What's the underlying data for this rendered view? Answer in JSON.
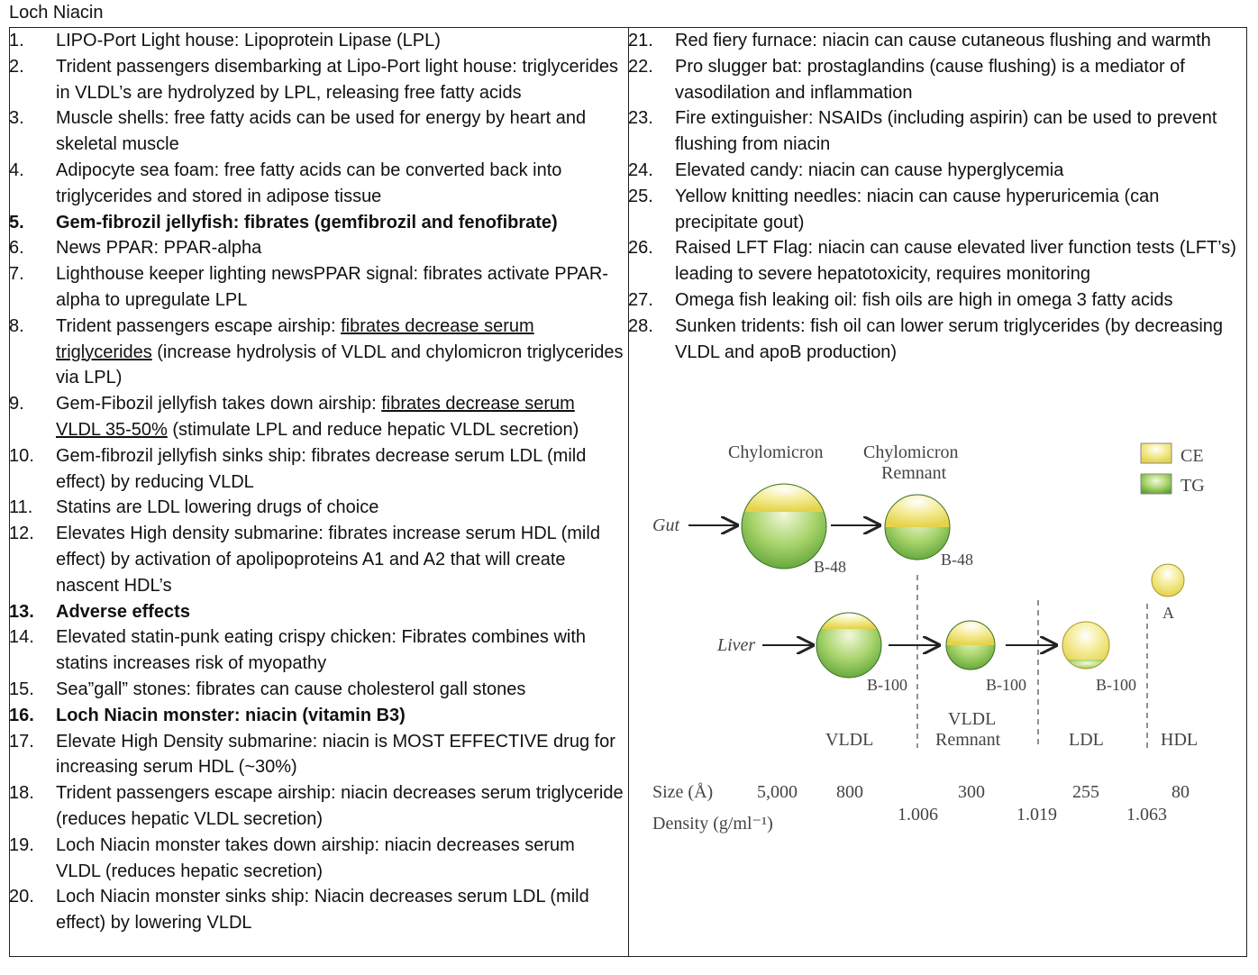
{
  "title": "Loch Niacin",
  "left_items": [
    {
      "num": "1.",
      "parts": [
        {
          "t": "LIPO-Port Light house: Lipoprotein Lipase (LPL)"
        }
      ]
    },
    {
      "num": "2.",
      "parts": [
        {
          "t": "Trident passengers disembarking at Lipo-Port light house: triglycerides in VLDL’s are hydrolyzed by LPL, releasing free fatty acids"
        }
      ]
    },
    {
      "num": "3.",
      "parts": [
        {
          "t": "Muscle shells: free fatty acids can be used for energy by heart and skeletal muscle"
        }
      ]
    },
    {
      "num": "4.",
      "parts": [
        {
          "t": "Adipocyte sea foam: free fatty acids can be converted back into triglycerides and stored in adipose tissue"
        }
      ]
    },
    {
      "num": "5.",
      "bold": true,
      "parts": [
        {
          "t": "Gem-fibrozil jellyfish: fibrates (gemfibrozil and fenofibrate)"
        }
      ]
    },
    {
      "num": "6.",
      "parts": [
        {
          "t": "News PPAR: PPAR-alpha"
        }
      ]
    },
    {
      "num": "7.",
      "parts": [
        {
          "t": "Lighthouse keeper lighting newsPPAR signal: fibrates activate PPAR-alpha to upregulate LPL"
        }
      ]
    },
    {
      "num": "8.",
      "parts": [
        {
          "t": "Trident passengers escape airship: "
        },
        {
          "t": "fibrates decrease serum triglycerides",
          "u": true
        },
        {
          "t": " (increase hydrolysis of VLDL and chylomicron triglycerides via LPL)"
        }
      ]
    },
    {
      "num": "9.",
      "parts": [
        {
          "t": "Gem-Fibozil jellyfish takes down airship: "
        },
        {
          "t": "fibrates decrease serum VLDL 35-50%",
          "u": true
        },
        {
          "t": " (stimulate LPL and reduce hepatic VLDL secretion)"
        }
      ]
    },
    {
      "num": "10.",
      "parts": [
        {
          "t": "Gem-fibrozil jellyfish sinks ship: fibrates decrease serum LDL (mild effect) by reducing VLDL"
        }
      ]
    },
    {
      "num": "11.",
      "parts": [
        {
          "t": "Statins are LDL lowering drugs of choice"
        }
      ]
    },
    {
      "num": "12.",
      "parts": [
        {
          "t": "Elevates High density submarine: fibrates increase serum HDL (mild effect) by activation  of apolipoproteins A1 and A2 that will create nascent HDL’s"
        }
      ]
    },
    {
      "num": "13.",
      "bold": true,
      "parts": [
        {
          "t": "Adverse effects"
        }
      ]
    },
    {
      "num": "14.",
      "parts": [
        {
          "t": "Elevated statin-punk eating crispy chicken: Fibrates combines with statins increases risk of myopathy"
        }
      ]
    },
    {
      "num": "15.",
      "parts": [
        {
          "t": "Sea”gall” stones: fibrates can cause cholesterol gall stones"
        }
      ]
    },
    {
      "num": "16.",
      "bold": true,
      "parts": [
        {
          "t": "Loch Niacin monster: niacin (vitamin B3)"
        }
      ]
    },
    {
      "num": "17.",
      "parts": [
        {
          "t": "Elevate High Density submarine: niacin is MOST EFFECTIVE drug for increasing serum HDL (~30%)"
        }
      ]
    },
    {
      "num": "18.",
      "parts": [
        {
          "t": "Trident passengers escape airship: niacin decreases serum triglyceride (reduces hepatic VLDL secretion)"
        }
      ]
    },
    {
      "num": "19.",
      "parts": [
        {
          "t": "Loch Niacin monster takes down airship: niacin decreases serum VLDL (reduces hepatic secretion)"
        }
      ]
    },
    {
      "num": "20.",
      "parts": [
        {
          "t": "Loch Niacin monster sinks ship: Niacin decreases serum LDL (mild effect) by lowering VLDL"
        }
      ]
    }
  ],
  "right_items": [
    {
      "num": "21.",
      "parts": [
        {
          "t": "Red fiery furnace: niacin can cause cutaneous flushing and warmth"
        }
      ]
    },
    {
      "num": "22.",
      "parts": [
        {
          "t": "Pro slugger bat: prostaglandins (cause flushing) is a mediator of vasodilation and inflammation"
        }
      ]
    },
    {
      "num": "23.",
      "parts": [
        {
          "t": "Fire extinguisher: NSAIDs (including aspirin) can be used to prevent flushing from niacin"
        }
      ]
    },
    {
      "num": "24.",
      "parts": [
        {
          "t": "Elevated candy: niacin can cause hyperglycemia"
        }
      ]
    },
    {
      "num": "25.",
      "parts": [
        {
          "t": "Yellow knitting needles: niacin can cause hyperuricemia (can precipitate gout)"
        }
      ]
    },
    {
      "num": "26.",
      "parts": [
        {
          "t": "Raised LFT Flag: niacin can cause elevated liver function tests (LFT’s) leading to severe hepatotoxicity, requires monitoring"
        }
      ]
    },
    {
      "num": "27.",
      "parts": [
        {
          "t": "Omega fish leaking oil: fish oils are high in omega 3 fatty acids"
        }
      ]
    },
    {
      "num": "28.",
      "parts": [
        {
          "t": "Sunken tridents: fish oil can lower serum triglycerides (by decreasing VLDL and apoB production)"
        }
      ]
    }
  ],
  "diagram": {
    "chylomicron": "Chylomicron",
    "chylo_remnant_1": "Chylomicron",
    "chylo_remnant_2": "Remnant",
    "legend_ce": "CE",
    "legend_tg": "TG",
    "gut": "Gut",
    "liver": "Liver",
    "b48_a": "B-48",
    "b48_b": "B-48",
    "b100_a": "B-100",
    "b100_b": "B-100",
    "b100_c": "B-100",
    "apo_a": "A",
    "vldl": "VLDL",
    "vldl_rem_1": "VLDL",
    "vldl_rem_2": "Remnant",
    "ldl": "LDL",
    "hdl": "HDL",
    "size_label": "Size (Å)",
    "density_label": "Density (g/ml⁻¹)",
    "size_vals": [
      "5,000",
      "800",
      "300",
      "255",
      "80"
    ],
    "density_vals": [
      "1.006",
      "1.019",
      "1.063"
    ],
    "colors": {
      "ce": "#f3e98a",
      "tg": "#6cb548",
      "text": "#444444"
    }
  }
}
